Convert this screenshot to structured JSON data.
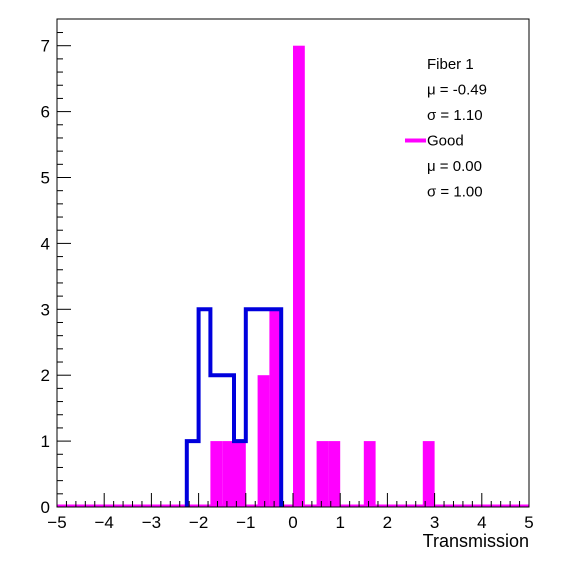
{
  "chart_data": {
    "type": "histogram",
    "title": "",
    "xlabel": "Transmission",
    "ylabel": "",
    "xlim": [
      -5,
      5
    ],
    "ylim": [
      0,
      7.3
    ],
    "bin_width": 0.25,
    "x_ticks": [
      -5,
      -4,
      -3,
      -2,
      -1,
      0,
      1,
      2,
      3,
      4,
      5
    ],
    "x_tick_labels": [
      "−5",
      "−4",
      "−3",
      "−2",
      "−1",
      "0",
      "1",
      "2",
      "3",
      "4",
      "5"
    ],
    "y_ticks": [
      0,
      1,
      2,
      3,
      4,
      5,
      6,
      7
    ],
    "y_tick_labels": [
      "0",
      "1",
      "2",
      "3",
      "4",
      "5",
      "6",
      "7"
    ],
    "grid": false,
    "legend_position": "top-right",
    "series": [
      {
        "name": "Fiber 1",
        "style": "outline",
        "color": "#0000dd",
        "bins": [
          {
            "x": -2.25,
            "count": 1
          },
          {
            "x": -2.0,
            "count": 3
          },
          {
            "x": -1.75,
            "count": 2
          },
          {
            "x": -1.5,
            "count": 2
          },
          {
            "x": -1.25,
            "count": 1
          },
          {
            "x": -1.0,
            "count": 3
          },
          {
            "x": -0.75,
            "count": 3
          },
          {
            "x": -0.5,
            "count": 3
          }
        ],
        "stats": [
          "μ = -0.49",
          "σ = 1.10"
        ]
      },
      {
        "name": "Good",
        "style": "filled",
        "color": "#ff00ff",
        "bins": [
          {
            "x": -1.75,
            "count": 1
          },
          {
            "x": -1.5,
            "count": 1
          },
          {
            "x": -1.25,
            "count": 1
          },
          {
            "x": -0.75,
            "count": 2
          },
          {
            "x": -0.5,
            "count": 3
          },
          {
            "x": 0.0,
            "count": 7
          },
          {
            "x": 0.5,
            "count": 1
          },
          {
            "x": 0.75,
            "count": 1
          },
          {
            "x": 1.5,
            "count": 1
          },
          {
            "x": 2.75,
            "count": 1
          }
        ],
        "stats": [
          "μ = 0.00",
          "σ = 1.00"
        ]
      }
    ]
  }
}
